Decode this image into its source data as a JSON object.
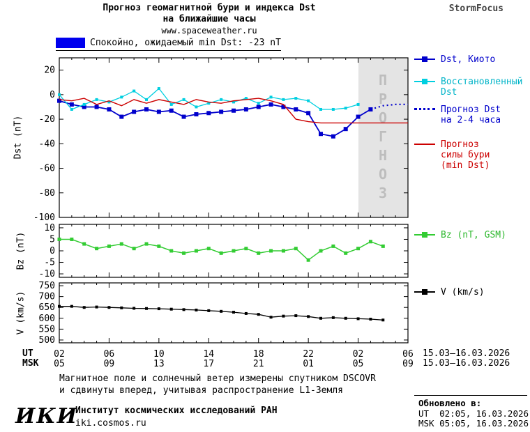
{
  "header": {
    "title_line1": "Прогноз геомагнитной бури и индекса Dst",
    "title_line2": "на ближайшие часы",
    "site": "www.spaceweather.ru",
    "brand": "StormFocus"
  },
  "status_legend": {
    "label": "Спокойно, ожидаемый min Dst: -23 nT",
    "color": "#0000ee"
  },
  "forecast_band": {
    "label": "П\nР\nО\nГ\nН\nО\nЗ",
    "color": "#e4e4e4"
  },
  "legend_main": {
    "dst_kyoto": "Dst, Киото",
    "restored": "Восстановленный\nDst",
    "forecast": "Прогноз Dst\nна 2-4 часа",
    "storm": "Прогноз\nсилы бури\n(min Dst)"
  },
  "legend_bz": "Bz (nT, GSM)",
  "legend_v": "V (km/s)",
  "axis": {
    "ut_label": "UT",
    "msk_label": "MSK",
    "date_ut": "15.03–16.03.2026",
    "date_msk": "15.03–16.03.2026"
  },
  "captions": {
    "line1": "Магнитное поле и солнечный ветер измерены спутником DSCOVR",
    "line2": "и сдвинуты вперед, учитывая распространение L1-Земля"
  },
  "footer": {
    "org_logo": "ИКИ",
    "org_name": "Институт космических исследований РАН",
    "org_site": "iki.cosmos.ru",
    "updated_label": "Обновлено в:",
    "updated_ut": "UT  02:05, 16.03.2026",
    "updated_msk": "MSK 05:05, 16.03.2026"
  },
  "chart_data": [
    {
      "type": "line",
      "title": "Прогноз геомагнитной бури и индекса Dst на ближайшие часы",
      "ylabel": "Dst (nT)",
      "ylim": [
        -100,
        30
      ],
      "yticks": [
        20,
        0,
        -20,
        -40,
        -60,
        -80,
        -100
      ],
      "x_hours_range": [
        0,
        28
      ],
      "xticks": {
        "hours": [
          0,
          4,
          8,
          12,
          16,
          20,
          24,
          28
        ],
        "ut": [
          "02",
          "06",
          "10",
          "14",
          "18",
          "22",
          "02",
          "06"
        ],
        "msk": [
          "05",
          "09",
          "13",
          "17",
          "21",
          "01",
          "05",
          "09"
        ]
      },
      "forecast_band": {
        "start_hour": 24,
        "end_hour": 28
      },
      "series": [
        {
          "name": "Dst, Киото",
          "color": "#0000cc",
          "style": "solid",
          "marker": "square",
          "x": [
            0,
            1,
            2,
            3,
            4,
            5,
            6,
            7,
            8,
            9,
            10,
            11,
            12,
            13,
            14,
            15,
            16,
            17,
            18,
            19,
            20,
            21,
            22,
            23,
            24,
            25
          ],
          "y": [
            -5,
            -8,
            -10,
            -10,
            -12,
            -18,
            -14,
            -12,
            -14,
            -13,
            -18,
            -16,
            -15,
            -14,
            -13,
            -12,
            -10,
            -8,
            -10,
            -12,
            -15,
            -32,
            -34,
            -28,
            -18,
            -12
          ]
        },
        {
          "name": "Восстановленный Dst",
          "color": "#00cfe0",
          "style": "solid",
          "marker": "square",
          "x": [
            0,
            1,
            2,
            3,
            4,
            5,
            6,
            7,
            8,
            9,
            10,
            11,
            12,
            13,
            14,
            15,
            16,
            17,
            18,
            19,
            20,
            21,
            22,
            23,
            24
          ],
          "y": [
            0,
            -12,
            -8,
            -4,
            -6,
            -2,
            3,
            -4,
            5,
            -8,
            -4,
            -10,
            -7,
            -4,
            -6,
            -3,
            -7,
            -2,
            -4,
            -3,
            -5,
            -12,
            -12,
            -11,
            -8
          ]
        },
        {
          "name": "Прогноз Dst на 2-4 часа",
          "color": "#0000cc",
          "style": "dotted",
          "marker": "none",
          "x": [
            25,
            26,
            27,
            28
          ],
          "y": [
            -12,
            -9,
            -8,
            -8
          ]
        },
        {
          "name": "Прогноз силы бури (min Dst)",
          "color": "#cc0000",
          "style": "solid",
          "marker": "none",
          "x": [
            0,
            1,
            2,
            3,
            4,
            5,
            6,
            7,
            8,
            9,
            10,
            11,
            12,
            13,
            14,
            15,
            16,
            17,
            18,
            19,
            20,
            21,
            22,
            23,
            24,
            25,
            26,
            27,
            28
          ],
          "y": [
            -4,
            -5,
            -3,
            -8,
            -5,
            -9,
            -4,
            -7,
            -4,
            -6,
            -8,
            -4,
            -6,
            -7,
            -5,
            -4,
            -3,
            -5,
            -8,
            -20,
            -22,
            -23,
            -23,
            -23,
            -23,
            -23,
            -23,
            -23,
            -23
          ]
        }
      ]
    },
    {
      "type": "line",
      "ylabel": "Bz (nT)",
      "ylim": [
        -10,
        10
      ],
      "yticks": [
        10,
        5,
        0,
        -5,
        -10
      ],
      "series": [
        {
          "name": "Bz (nT, GSM)",
          "color": "#33cc33",
          "style": "solid",
          "marker": "square",
          "x": [
            0,
            1,
            2,
            3,
            4,
            5,
            6,
            7,
            8,
            9,
            10,
            11,
            12,
            13,
            14,
            15,
            16,
            17,
            18,
            19,
            20,
            21,
            22,
            23,
            24,
            25,
            26
          ],
          "y": [
            5,
            5,
            3,
            1,
            2,
            3,
            1,
            3,
            2,
            0,
            -1,
            0,
            1,
            -1,
            0,
            1,
            -1,
            0,
            0,
            1,
            -4,
            0,
            2,
            -1,
            1,
            4,
            2
          ]
        }
      ]
    },
    {
      "type": "line",
      "ylabel": "V (km/s)",
      "ylim": [
        500,
        750
      ],
      "yticks": [
        750,
        700,
        650,
        600,
        550,
        500
      ],
      "series": [
        {
          "name": "V (km/s)",
          "color": "#000000",
          "style": "solid",
          "marker": "square",
          "x": [
            0,
            1,
            2,
            3,
            4,
            5,
            6,
            7,
            8,
            9,
            10,
            11,
            12,
            13,
            14,
            15,
            16,
            17,
            18,
            19,
            20,
            21,
            22,
            23,
            24,
            25,
            26
          ],
          "y": [
            655,
            655,
            650,
            652,
            650,
            648,
            646,
            645,
            644,
            642,
            640,
            638,
            635,
            632,
            628,
            622,
            618,
            605,
            610,
            612,
            608,
            600,
            603,
            600,
            598,
            596,
            592
          ]
        }
      ]
    }
  ]
}
